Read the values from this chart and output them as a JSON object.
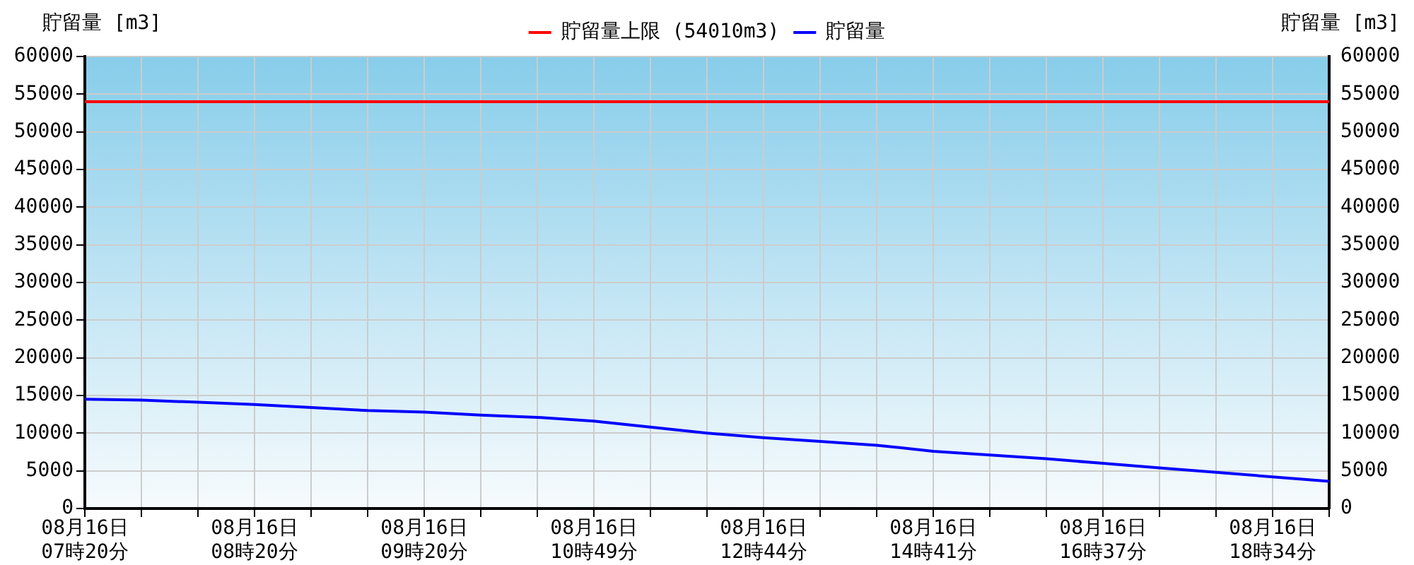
{
  "chart_data": {
    "type": "line",
    "ylabel": "貯留量 [m3]",
    "y2label": "貯留量 [m3]",
    "categories": [
      "08月16日\n07時20分",
      null,
      null,
      "08月16日\n08時20分",
      null,
      null,
      "08月16日\n09時20分",
      null,
      null,
      "08月16日\n10時49分",
      null,
      null,
      "08月16日\n12時44分",
      null,
      null,
      "08月16日\n14時41分",
      null,
      null,
      "08月16日\n16時37分",
      null,
      null,
      "08月16日\n18時34分",
      null
    ],
    "series": [
      {
        "name": "貯留量",
        "color": "#0000ff",
        "values": [
          14500,
          14400,
          14100,
          13800,
          13400,
          13000,
          12800,
          12400,
          12100,
          11600,
          10800,
          10000,
          9400,
          8900,
          8400,
          7600,
          7100,
          6600,
          6000,
          5400,
          4800,
          4200,
          3600
        ]
      }
    ],
    "ref_lines": [
      {
        "axis": "y",
        "value": 54010,
        "label": "貯留量上限 (54010m3)",
        "color": "#ff0000"
      }
    ],
    "ylim": [
      0,
      60000
    ],
    "yticks": [
      0,
      5000,
      10000,
      15000,
      20000,
      25000,
      30000,
      35000,
      40000,
      45000,
      50000,
      55000,
      60000
    ],
    "y2lim": [
      0,
      60000
    ],
    "y2ticks": [
      0,
      5000,
      10000,
      15000,
      20000,
      25000,
      30000,
      35000,
      40000,
      45000,
      50000,
      55000,
      60000
    ],
    "grid": true,
    "legend": "top",
    "line_style": "solid",
    "marker": "none"
  }
}
